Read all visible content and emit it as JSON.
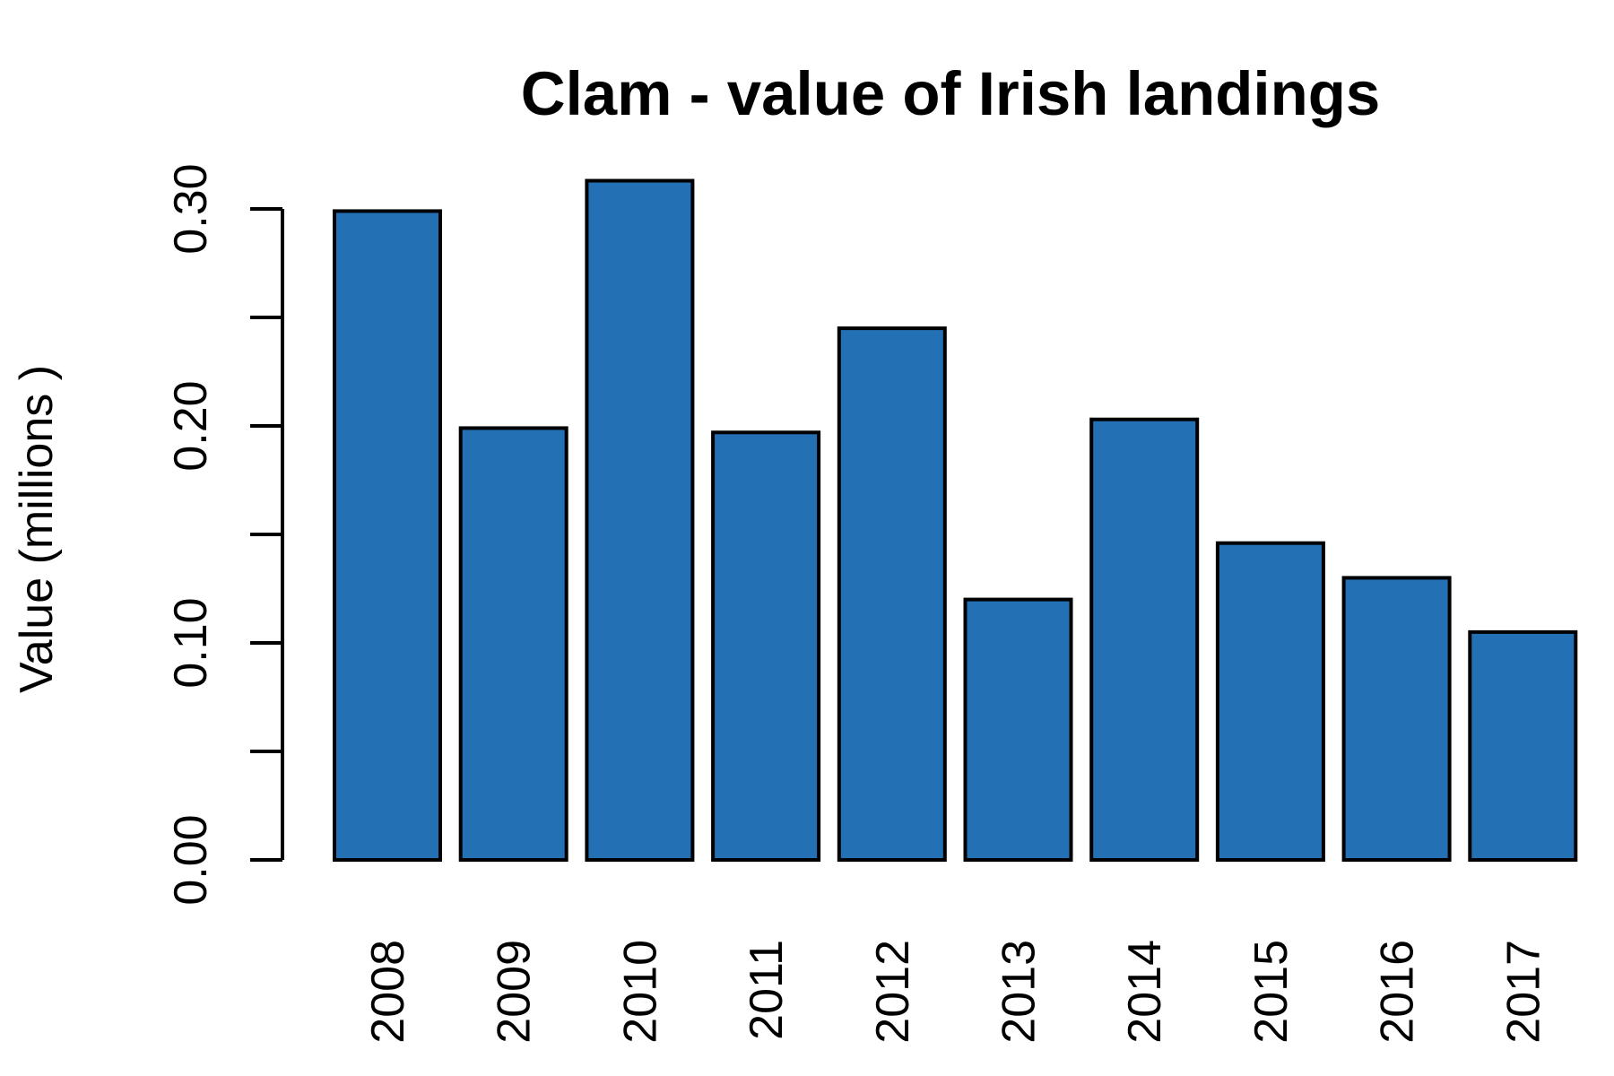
{
  "chart_data": {
    "type": "bar",
    "title": "Clam - value of Irish landings",
    "xlabel": "",
    "ylabel": "Value (millions )",
    "categories": [
      "2008",
      "2009",
      "2010",
      "2011",
      "2012",
      "2013",
      "2014",
      "2015",
      "2016",
      "2017"
    ],
    "values": [
      0.299,
      0.199,
      0.313,
      0.197,
      0.245,
      0.12,
      0.203,
      0.146,
      0.13,
      0.105
    ],
    "ylim": [
      0,
      0.3
    ],
    "y_ticks": [
      0.0,
      0.05,
      0.1,
      0.15,
      0.2,
      0.25,
      0.3
    ],
    "y_tick_labels": [
      "0.00",
      "",
      "0.10",
      "",
      "0.20",
      "",
      "0.30"
    ],
    "grid": false,
    "legend": "none",
    "bar_color": "#2470b4",
    "edge_color": "#000000"
  }
}
